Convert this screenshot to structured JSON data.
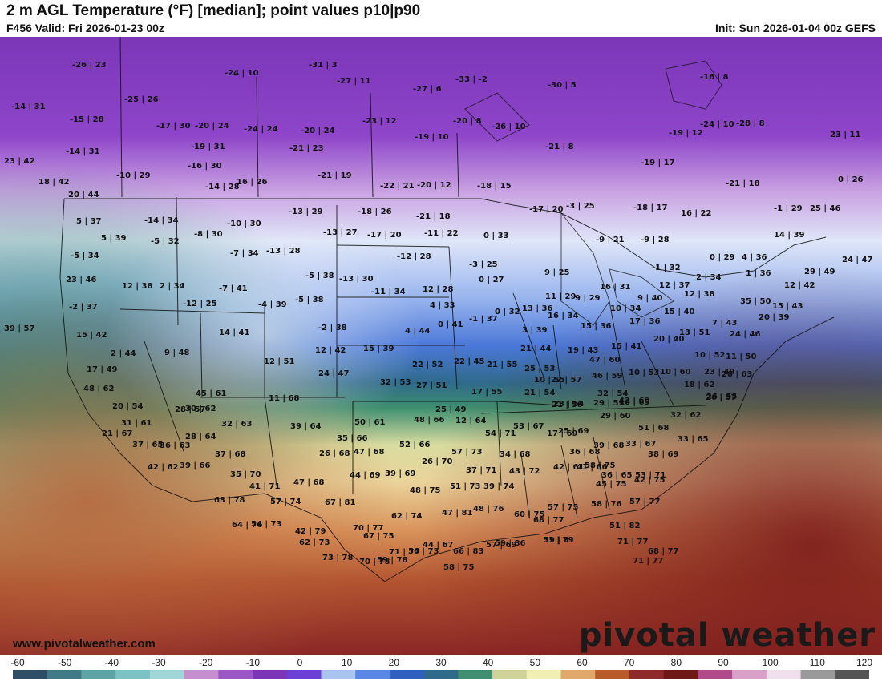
{
  "header": {
    "title": "2 m AGL Temperature (°F) [median]; point values p10|p90",
    "valid": "F456 Valid: Fri 2026-01-23 00z",
    "init": "Init: Sun 2026-01-04 00z GEFS"
  },
  "footer": {
    "site": "www.pivotalweather.com",
    "brand": "pivotal weather"
  },
  "colorbar": {
    "ticks": [
      "-60",
      "-50",
      "-40",
      "-30",
      "-20",
      "-10",
      "0",
      "10",
      "20",
      "30",
      "40",
      "50",
      "60",
      "70",
      "80",
      "90",
      "100",
      "110",
      "120"
    ],
    "colors": [
      "#2d4e66",
      "#3f7a86",
      "#5ea4a6",
      "#7cc2c4",
      "#a0d6d8",
      "#c58fcf",
      "#9b57c5",
      "#7b36b8",
      "#6c3fd6",
      "#aac4f0",
      "#5a86e6",
      "#2f5fbf",
      "#2f6a8a",
      "#3f8f70",
      "#cfd39a",
      "#f2efb4",
      "#e0a86a",
      "#b85a2a",
      "#8e2a2a",
      "#6e1818",
      "#b04a8a",
      "#d9a0c8",
      "#f0e0ee",
      "#9a9a9a",
      "#555555"
    ]
  },
  "point_values": [
    "-26 | 23",
    "-24 | 10",
    "-31 | 3",
    "-27 | 11",
    "-27 | 6",
    "-33 | -2",
    "-30 | 5",
    "-16 | 8",
    "-14 | 31",
    "-25 | 26",
    "-15 | 28",
    "-17 | 30",
    "-20 | 24",
    "-24 | 24",
    "-20 | 24",
    "-23 | 12",
    "-20 | 8",
    "-26 | 10",
    "-19 | 10",
    "-14 | 31",
    "-19 | 31",
    "-21 | 23",
    "-21 | 8",
    "-19 | 12",
    "-24 | 10",
    "-28 | 8",
    "23 | 11",
    "23 | 42",
    "-16 | 30",
    "-10 | 29",
    "-21 | 19",
    "-19 | 17",
    "-21 | 18",
    "0 | 26",
    "18 | 42",
    "-14 | 28",
    "16 | 26",
    "-22 | 21",
    "-20 | 12",
    "-18 | 15",
    "-17 | 20",
    "20 | 44",
    "-13 | 29",
    "-18 | 26",
    "-21 | 18",
    "-3 | 25",
    "-18 | 17",
    "16 | 22",
    "-1 | 29",
    "25 | 46",
    "5 | 37",
    "-14 | 34",
    "-10 | 30",
    "-13 | 27",
    "-17 | 20",
    "-11 | 22",
    "0 | 33",
    "-9 | 21",
    "-9 | 28",
    "14 | 39",
    "5 | 39",
    "-5 | 32",
    "-8 | 30",
    "-7 | 34",
    "-13 | 28",
    "-12 | 28",
    "-3 | 25",
    "0 | 29",
    "4 | 36",
    "24 | 47",
    "-5 | 34",
    "-5 | 38",
    "-13 | 30",
    "0 | 27",
    "9 | 25",
    "-1 | 32",
    "2 | 34",
    "1 | 36",
    "29 | 49",
    "23 | 46",
    "12 | 38",
    "2 | 34",
    "-7 | 41",
    "-11 | 34",
    "12 | 28",
    "16 | 31",
    "12 | 37",
    "12 | 38",
    "12 | 42",
    "-12 | 25",
    "-4 | 39",
    "-5 | 38",
    "4 | 33",
    "11 | 29",
    "9 | 29",
    "9 | 40",
    "35 | 50",
    "-2 | 37",
    "0 | 32",
    "13 | 36",
    "16 | 34",
    "10 | 34",
    "15 | 40",
    "15 | 43",
    "39 | 57",
    "14 | 41",
    "-2 | 38",
    "4 | 44",
    "0 | 41",
    "-1 | 37",
    "3 | 39",
    "15 | 36",
    "17 | 36",
    "7 | 43",
    "24 | 46",
    "20 | 39",
    "15 | 42",
    "2 | 44",
    "9 | 48",
    "12 | 42",
    "15 | 39",
    "21 | 44",
    "19 | 43",
    "15 | 41",
    "20 | 40",
    "13 | 51",
    "12 | 51",
    "22 | 45",
    "21 | 55",
    "25 | 53",
    "47 | 60",
    "10 | 52",
    "11 | 50",
    "17 | 49",
    "24 | 47",
    "22 | 52",
    "10 | 55",
    "27 | 57",
    "46 | 59",
    "10 | 53",
    "10 | 60",
    "23 | 49",
    "28 | 63",
    "48 | 62",
    "32 | 53",
    "27 | 51",
    "17 | 55",
    "21 | 54",
    "21 | 56",
    "32 | 54",
    "42 | 60",
    "18 | 62",
    "26 | 55",
    "20 | 54",
    "45 | 61",
    "11 | 68",
    "16 | 65",
    "26 | 57",
    "28 | 57",
    "30 | 62",
    "25 | 49",
    "23 | 54",
    "29 | 59",
    "31 | 61",
    "50 | 61",
    "48 | 66",
    "12 | 64",
    "29 | 60",
    "32 | 62",
    "32 | 63",
    "39 | 64",
    "53 | 67",
    "51 | 68",
    "21 | 67",
    "28 | 64",
    "35 | 66",
    "54 | 71",
    "17 | 69",
    "25 | 69",
    "33 | 65",
    "37 | 65",
    "36 | 63",
    "52 | 66",
    "57 | 73",
    "33 | 67",
    "37 | 68",
    "47 | 68",
    "26 | 68",
    "34 | 68",
    "36 | 68",
    "39 | 68",
    "38 | 69",
    "42 | 62",
    "39 | 66",
    "26 | 70",
    "41 | 66",
    "58 | 75",
    "35 | 70",
    "39 | 69",
    "37 | 71",
    "43 | 72",
    "42 | 61",
    "36 | 65",
    "42 | 75",
    "41 | 71",
    "47 | 68",
    "44 | 69",
    "53 | 71",
    "63 | 78",
    "48 | 75",
    "51 | 73",
    "39 | 74",
    "45 | 75",
    "57 | 74",
    "67 | 81",
    "47 | 81",
    "48 | 76",
    "60 | 75",
    "57 | 75",
    "58 | 76",
    "57 | 77",
    "64 | 76",
    "54 | 73",
    "42 | 79",
    "70 | 77",
    "62 | 74",
    "68 | 77",
    "51 | 82",
    "44 | 67",
    "59 | 78",
    "71 | 77",
    "66 | 83",
    "59 | 86",
    "51 | 79",
    "71 | 77",
    "68 | 77",
    "62 | 73",
    "73 | 78",
    "70 | 78",
    "71 | 77",
    "58 | 75",
    "57 | 69",
    "59 | 81",
    "67 | 75",
    "56 | 73"
  ]
}
